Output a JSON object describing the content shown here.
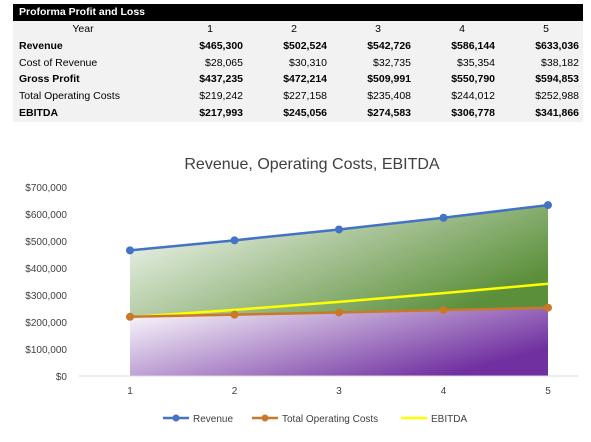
{
  "table": {
    "title": "Proforma Profit and Loss",
    "header": {
      "label": "Year",
      "years": [
        "1",
        "2",
        "3",
        "4",
        "5"
      ]
    },
    "rows": [
      {
        "label": "Revenue",
        "bold": true,
        "values": [
          "$465,300",
          "$502,524",
          "$542,726",
          "$586,144",
          "$633,036"
        ]
      },
      {
        "label": "Cost of Revenue",
        "bold": false,
        "values": [
          "$28,065",
          "$30,310",
          "$32,735",
          "$35,354",
          "$38,182"
        ]
      },
      {
        "label": "Gross Profit",
        "bold": true,
        "values": [
          "$437,235",
          "$472,214",
          "$509,991",
          "$550,790",
          "$594,853"
        ]
      },
      {
        "label": "Total Operating Costs",
        "bold": false,
        "values": [
          "$219,242",
          "$227,158",
          "$235,408",
          "$244,012",
          "$252,988"
        ]
      },
      {
        "label": "EBITDA",
        "bold": true,
        "values": [
          "$217,993",
          "$245,056",
          "$274,583",
          "$306,778",
          "$341,866"
        ]
      }
    ]
  },
  "chart_data": {
    "type": "line",
    "title": "Revenue, Operating Costs, EBITDA",
    "categories": [
      "1",
      "2",
      "3",
      "4",
      "5"
    ],
    "ylim": [
      0,
      700000
    ],
    "y_ticks": [
      0,
      100000,
      200000,
      300000,
      400000,
      500000,
      600000,
      700000
    ],
    "y_tick_labels": [
      "$0",
      "$100,000",
      "$200,000",
      "$300,000",
      "$400,000",
      "$500,000",
      "$600,000",
      "$700,000"
    ],
    "grid": false,
    "legend": "bottom",
    "series": [
      {
        "name": "Revenue",
        "values": [
          465300,
          502524,
          542726,
          586144,
          633036
        ],
        "color": "#4472c4",
        "markers": true
      },
      {
        "name": "Total Operating Costs",
        "values": [
          219242,
          227158,
          235408,
          244012,
          252988
        ],
        "color": "#c9792a",
        "markers": true
      },
      {
        "name": "EBITDA",
        "values": [
          217993,
          245056,
          274583,
          306778,
          341866
        ],
        "color": "#ffff00",
        "markers": false
      }
    ],
    "area_colors": {
      "revenue_fill": "#5b8f3a",
      "cost_fill": "#7030a0"
    }
  }
}
